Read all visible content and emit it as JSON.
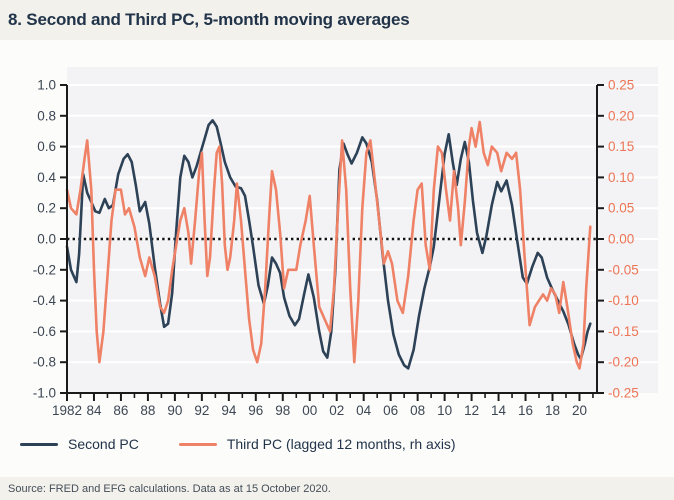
{
  "header": {
    "title": "8. Second and Third PC, 5-month moving averages"
  },
  "footer": {
    "source": "Source: FRED and EFG calculations. Data as at 15 October 2020."
  },
  "legend": [
    {
      "label": "Second PC",
      "color": "#2d4257"
    },
    {
      "label": "Third PC (lagged 12 months, rh axis)",
      "color": "#ef8166"
    }
  ],
  "colors": {
    "navy": "#2d4257",
    "orange": "#ef8166",
    "right_axis_label": "#ed7455",
    "axis_line": "#1b1b1b",
    "tick_label": "#3d4754",
    "plot_bg": "#f3f3f5",
    "gridline": "#ffffff",
    "zero_line": "#111111",
    "panel_bg": "#fcfcfa",
    "strip_bg": "#f2f1ec"
  },
  "chart_data": {
    "type": "line",
    "title": "8. Second and Third PC, 5-month moving averages",
    "xlabel": "",
    "ylabel_left": "",
    "ylabel_right": "",
    "x_range": [
      1982,
      2021.3
    ],
    "ylim_left": [
      -1.0,
      1.0
    ],
    "ylim_right": [
      -0.25,
      0.25
    ],
    "grid": "horizontal-white",
    "zero_line": "dotted-black",
    "legend_position": "bottom-left",
    "y_left_ticks": [
      "1.0",
      "0.8",
      "0.6",
      "0.4",
      "0.2",
      "0.0",
      "-0.2",
      "-0.4",
      "-0.6",
      "-0.8",
      "-1.0"
    ],
    "y_right_ticks": [
      "0.25",
      "0.20",
      "0.15",
      "0.10",
      "0.05",
      "0.00",
      "-0.05",
      "-0.10",
      "-0.15",
      "-0.20",
      "-0.25"
    ],
    "x_tick_labels": [
      "1982",
      "84",
      "86",
      "88",
      "90",
      "92",
      "94",
      "96",
      "98",
      "00",
      "02",
      "04",
      "06",
      "08",
      "10",
      "12",
      "14",
      "16",
      "18",
      "20"
    ],
    "x_tick_years": [
      1982,
      1984,
      1986,
      1988,
      1990,
      1992,
      1994,
      1996,
      1998,
      2000,
      2002,
      2004,
      2006,
      2008,
      2010,
      2012,
      2014,
      2016,
      2018,
      2020
    ],
    "x_minor_tick_years": [
      1983,
      1985,
      1987,
      1989,
      1991,
      1993,
      1995,
      1997,
      1999,
      2001,
      2003,
      2005,
      2007,
      2009,
      2011,
      2013,
      2015,
      2017,
      2019,
      2021
    ],
    "series": [
      {
        "name": "Second PC",
        "axis": "left",
        "color": "#2d4257",
        "points": [
          [
            1982.0,
            -0.05
          ],
          [
            1982.3,
            -0.2
          ],
          [
            1982.7,
            -0.28
          ],
          [
            1982.9,
            -0.1
          ],
          [
            1983.2,
            0.42
          ],
          [
            1983.5,
            0.3
          ],
          [
            1983.8,
            0.24
          ],
          [
            1984.1,
            0.18
          ],
          [
            1984.4,
            0.17
          ],
          [
            1984.8,
            0.26
          ],
          [
            1985.1,
            0.2
          ],
          [
            1985.4,
            0.22
          ],
          [
            1985.8,
            0.42
          ],
          [
            1986.2,
            0.52
          ],
          [
            1986.5,
            0.55
          ],
          [
            1986.8,
            0.5
          ],
          [
            1987.1,
            0.35
          ],
          [
            1987.4,
            0.18
          ],
          [
            1987.8,
            0.24
          ],
          [
            1988.1,
            0.1
          ],
          [
            1988.5,
            -0.18
          ],
          [
            1988.9,
            -0.42
          ],
          [
            1989.2,
            -0.57
          ],
          [
            1989.5,
            -0.55
          ],
          [
            1989.8,
            -0.35
          ],
          [
            1990.1,
            0.05
          ],
          [
            1990.4,
            0.4
          ],
          [
            1990.7,
            0.54
          ],
          [
            1991.0,
            0.5
          ],
          [
            1991.3,
            0.4
          ],
          [
            1991.6,
            0.47
          ],
          [
            1991.9,
            0.56
          ],
          [
            1992.2,
            0.65
          ],
          [
            1992.5,
            0.74
          ],
          [
            1992.8,
            0.77
          ],
          [
            1993.1,
            0.73
          ],
          [
            1993.4,
            0.62
          ],
          [
            1993.7,
            0.5
          ],
          [
            1994.1,
            0.4
          ],
          [
            1994.5,
            0.34
          ],
          [
            1994.9,
            0.33
          ],
          [
            1995.2,
            0.28
          ],
          [
            1995.5,
            0.12
          ],
          [
            1995.8,
            -0.05
          ],
          [
            1996.2,
            -0.3
          ],
          [
            1996.6,
            -0.42
          ],
          [
            1996.9,
            -0.3
          ],
          [
            1997.2,
            -0.12
          ],
          [
            1997.5,
            -0.16
          ],
          [
            1997.8,
            -0.22
          ],
          [
            1998.1,
            -0.38
          ],
          [
            1998.5,
            -0.5
          ],
          [
            1998.9,
            -0.56
          ],
          [
            1999.2,
            -0.52
          ],
          [
            1999.6,
            -0.35
          ],
          [
            1999.9,
            -0.23
          ],
          [
            2000.3,
            -0.38
          ],
          [
            2000.7,
            -0.6
          ],
          [
            2001.0,
            -0.73
          ],
          [
            2001.3,
            -0.77
          ],
          [
            2001.6,
            -0.6
          ],
          [
            2001.9,
            -0.2
          ],
          [
            2002.2,
            0.45
          ],
          [
            2002.5,
            0.62
          ],
          [
            2002.8,
            0.55
          ],
          [
            2003.1,
            0.49
          ],
          [
            2003.5,
            0.56
          ],
          [
            2003.9,
            0.66
          ],
          [
            2004.2,
            0.62
          ],
          [
            2004.6,
            0.5
          ],
          [
            2005.0,
            0.25
          ],
          [
            2005.4,
            -0.1
          ],
          [
            2005.8,
            -0.4
          ],
          [
            2006.2,
            -0.62
          ],
          [
            2006.6,
            -0.75
          ],
          [
            2007.0,
            -0.82
          ],
          [
            2007.3,
            -0.84
          ],
          [
            2007.7,
            -0.72
          ],
          [
            2008.1,
            -0.5
          ],
          [
            2008.5,
            -0.32
          ],
          [
            2008.9,
            -0.18
          ],
          [
            2009.2,
            -0.05
          ],
          [
            2009.6,
            0.25
          ],
          [
            2010.0,
            0.55
          ],
          [
            2010.3,
            0.68
          ],
          [
            2010.6,
            0.5
          ],
          [
            2010.9,
            0.35
          ],
          [
            2011.2,
            0.52
          ],
          [
            2011.5,
            0.63
          ],
          [
            2011.8,
            0.5
          ],
          [
            2012.1,
            0.25
          ],
          [
            2012.4,
            0.04
          ],
          [
            2012.8,
            -0.09
          ],
          [
            2013.1,
            0.02
          ],
          [
            2013.5,
            0.22
          ],
          [
            2013.9,
            0.37
          ],
          [
            2014.2,
            0.31
          ],
          [
            2014.6,
            0.38
          ],
          [
            2015.0,
            0.22
          ],
          [
            2015.4,
            -0.02
          ],
          [
            2015.8,
            -0.25
          ],
          [
            2016.1,
            -0.29
          ],
          [
            2016.5,
            -0.18
          ],
          [
            2016.9,
            -0.09
          ],
          [
            2017.2,
            -0.12
          ],
          [
            2017.6,
            -0.25
          ],
          [
            2018.0,
            -0.33
          ],
          [
            2018.4,
            -0.4
          ],
          [
            2018.8,
            -0.47
          ],
          [
            2019.2,
            -0.56
          ],
          [
            2019.6,
            -0.68
          ],
          [
            2019.9,
            -0.75
          ],
          [
            2020.1,
            -0.78
          ],
          [
            2020.4,
            -0.68
          ],
          [
            2020.6,
            -0.6
          ],
          [
            2020.8,
            -0.55
          ]
        ]
      },
      {
        "name": "Third PC (lagged 12 months, rh axis)",
        "axis": "right",
        "color": "#ef8166",
        "points": [
          [
            1982.0,
            0.08
          ],
          [
            1982.3,
            0.05
          ],
          [
            1982.7,
            0.04
          ],
          [
            1983.0,
            0.08
          ],
          [
            1983.3,
            0.13
          ],
          [
            1983.5,
            0.16
          ],
          [
            1983.8,
            0.08
          ],
          [
            1984.0,
            -0.05
          ],
          [
            1984.2,
            -0.15
          ],
          [
            1984.4,
            -0.2
          ],
          [
            1984.7,
            -0.15
          ],
          [
            1985.0,
            -0.06
          ],
          [
            1985.3,
            0.03
          ],
          [
            1985.6,
            0.08
          ],
          [
            1986.0,
            0.08
          ],
          [
            1986.3,
            0.04
          ],
          [
            1986.6,
            0.05
          ],
          [
            1987.0,
            0.02
          ],
          [
            1987.4,
            -0.03
          ],
          [
            1987.8,
            -0.06
          ],
          [
            1988.1,
            -0.03
          ],
          [
            1988.5,
            -0.06
          ],
          [
            1988.9,
            -0.11
          ],
          [
            1989.2,
            -0.12
          ],
          [
            1989.5,
            -0.1
          ],
          [
            1989.8,
            -0.05
          ],
          [
            1990.1,
            -0.01
          ],
          [
            1990.4,
            0.03
          ],
          [
            1990.7,
            0.05
          ],
          [
            1991.0,
            0.01
          ],
          [
            1991.2,
            -0.04
          ],
          [
            1991.5,
            0.03
          ],
          [
            1991.8,
            0.11
          ],
          [
            1992.0,
            0.14
          ],
          [
            1992.2,
            0.03
          ],
          [
            1992.4,
            -0.06
          ],
          [
            1992.6,
            -0.03
          ],
          [
            1992.9,
            0.08
          ],
          [
            1993.1,
            0.14
          ],
          [
            1993.3,
            0.15
          ],
          [
            1993.5,
            0.09
          ],
          [
            1993.7,
            -0.01
          ],
          [
            1993.9,
            -0.05
          ],
          [
            1994.1,
            -0.03
          ],
          [
            1994.4,
            0.03
          ],
          [
            1994.6,
            0.09
          ],
          [
            1994.9,
            0.03
          ],
          [
            1995.2,
            -0.05
          ],
          [
            1995.5,
            -0.13
          ],
          [
            1995.8,
            -0.18
          ],
          [
            1996.1,
            -0.2
          ],
          [
            1996.4,
            -0.17
          ],
          [
            1996.7,
            -0.08
          ],
          [
            1997.0,
            0.04
          ],
          [
            1997.2,
            0.11
          ],
          [
            1997.5,
            0.08
          ],
          [
            1997.8,
            0.01
          ],
          [
            1998.1,
            -0.08
          ],
          [
            1998.4,
            -0.05
          ],
          [
            1998.7,
            -0.05
          ],
          [
            1999.0,
            -0.05
          ],
          [
            1999.3,
            -0.01
          ],
          [
            1999.7,
            0.03
          ],
          [
            2000.0,
            0.07
          ],
          [
            2000.3,
            -0.01
          ],
          [
            2000.7,
            -0.11
          ],
          [
            2001.1,
            -0.13
          ],
          [
            2001.5,
            -0.15
          ],
          [
            2001.8,
            -0.08
          ],
          [
            2002.1,
            0.05
          ],
          [
            2002.4,
            0.16
          ],
          [
            2002.7,
            0.08
          ],
          [
            2003.0,
            -0.08
          ],
          [
            2003.3,
            -0.2
          ],
          [
            2003.6,
            -0.1
          ],
          [
            2003.9,
            0.05
          ],
          [
            2004.2,
            0.14
          ],
          [
            2004.5,
            0.16
          ],
          [
            2004.8,
            0.1
          ],
          [
            2005.1,
            0.04
          ],
          [
            2005.5,
            -0.04
          ],
          [
            2005.8,
            -0.02
          ],
          [
            2006.1,
            -0.04
          ],
          [
            2006.5,
            -0.1
          ],
          [
            2006.9,
            -0.12
          ],
          [
            2007.3,
            -0.06
          ],
          [
            2007.7,
            0.03
          ],
          [
            2008.0,
            0.08
          ],
          [
            2008.3,
            0.09
          ],
          [
            2008.6,
            -0.01
          ],
          [
            2008.9,
            -0.05
          ],
          [
            2009.2,
            0.08
          ],
          [
            2009.5,
            0.15
          ],
          [
            2009.8,
            0.14
          ],
          [
            2010.1,
            0.08
          ],
          [
            2010.4,
            0.03
          ],
          [
            2010.7,
            0.11
          ],
          [
            2011.0,
            0.05
          ],
          [
            2011.2,
            -0.01
          ],
          [
            2011.5,
            0.06
          ],
          [
            2011.8,
            0.15
          ],
          [
            2012.0,
            0.18
          ],
          [
            2012.3,
            0.15
          ],
          [
            2012.6,
            0.19
          ],
          [
            2012.9,
            0.14
          ],
          [
            2013.2,
            0.12
          ],
          [
            2013.5,
            0.15
          ],
          [
            2013.9,
            0.14
          ],
          [
            2014.2,
            0.11
          ],
          [
            2014.6,
            0.14
          ],
          [
            2015.0,
            0.13
          ],
          [
            2015.3,
            0.14
          ],
          [
            2015.6,
            0.08
          ],
          [
            2015.9,
            -0.02
          ],
          [
            2016.3,
            -0.14
          ],
          [
            2016.7,
            -0.11
          ],
          [
            2017.0,
            -0.1
          ],
          [
            2017.3,
            -0.09
          ],
          [
            2017.6,
            -0.1
          ],
          [
            2017.9,
            -0.08
          ],
          [
            2018.2,
            -0.09
          ],
          [
            2018.5,
            -0.12
          ],
          [
            2018.8,
            -0.07
          ],
          [
            2019.1,
            -0.11
          ],
          [
            2019.5,
            -0.17
          ],
          [
            2019.8,
            -0.2
          ],
          [
            2020.0,
            -0.21
          ],
          [
            2020.3,
            -0.17
          ],
          [
            2020.5,
            -0.08
          ],
          [
            2020.8,
            0.02
          ]
        ]
      }
    ]
  }
}
